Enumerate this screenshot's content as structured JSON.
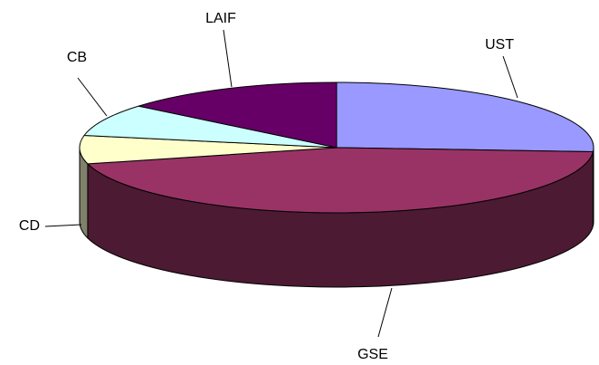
{
  "chart_data": {
    "type": "pie",
    "title": "",
    "style": "3d",
    "slices": [
      {
        "label": "UST",
        "value": 26,
        "color": "#9999ff",
        "side_color": "#5a5a99"
      },
      {
        "label": "GSE",
        "value": 45,
        "color": "#993366",
        "side_color": "#4d1a33"
      },
      {
        "label": "CD",
        "value": 7,
        "color": "#ffffcc",
        "side_color": "#80806b"
      },
      {
        "label": "CB",
        "value": 8,
        "color": "#ccffff",
        "side_color": "#668080"
      },
      {
        "label": "LAIF",
        "value": 14,
        "color": "#660066",
        "side_color": "#330033"
      }
    ]
  }
}
